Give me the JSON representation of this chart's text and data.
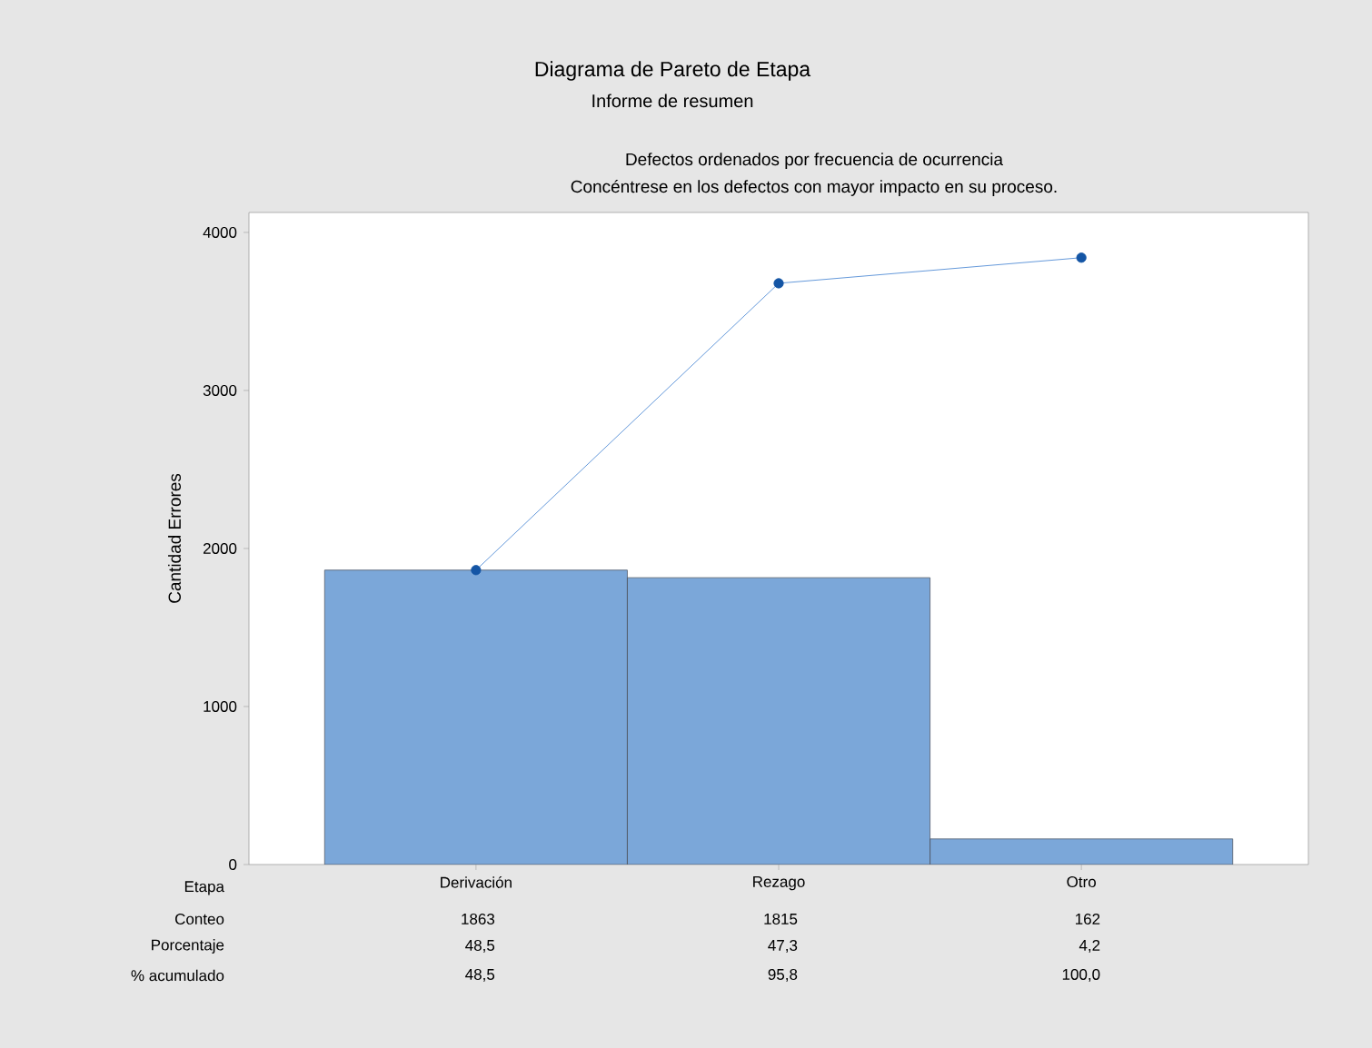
{
  "chart_data": {
    "type": "bar",
    "title": "Diagrama de Pareto de Etapa",
    "subtitle": "Informe de resumen",
    "xlabel": "Etapa",
    "ylabel": "Cantidad Errores",
    "categories": [
      "Derivación",
      "Rezago",
      "Otro"
    ],
    "series": [
      {
        "type": "bar",
        "color": "#7ba7d9",
        "values": [
          1863,
          1815,
          162
        ],
        "value_labels": [
          "1863",
          "1815",
          "162"
        ]
      },
      {
        "type": "line",
        "color": "#3d7fd0",
        "marker": "circle",
        "line_style": "solid",
        "values": [
          1863,
          3678,
          3840
        ]
      }
    ],
    "ylim": [
      0,
      4126
    ],
    "yticks": [
      0,
      1000,
      2000,
      3000,
      4000
    ],
    "annotations": [
      "Defectos ordenados por frecuencia de ocurrencia",
      "Concéntrese en los defectos con mayor impacto en su proceso.",
      "Conteo",
      "Porcentaje",
      "48,5",
      "47,3",
      "4,2",
      "% acumulado",
      "48,5",
      "95,8",
      "100,0"
    ]
  }
}
